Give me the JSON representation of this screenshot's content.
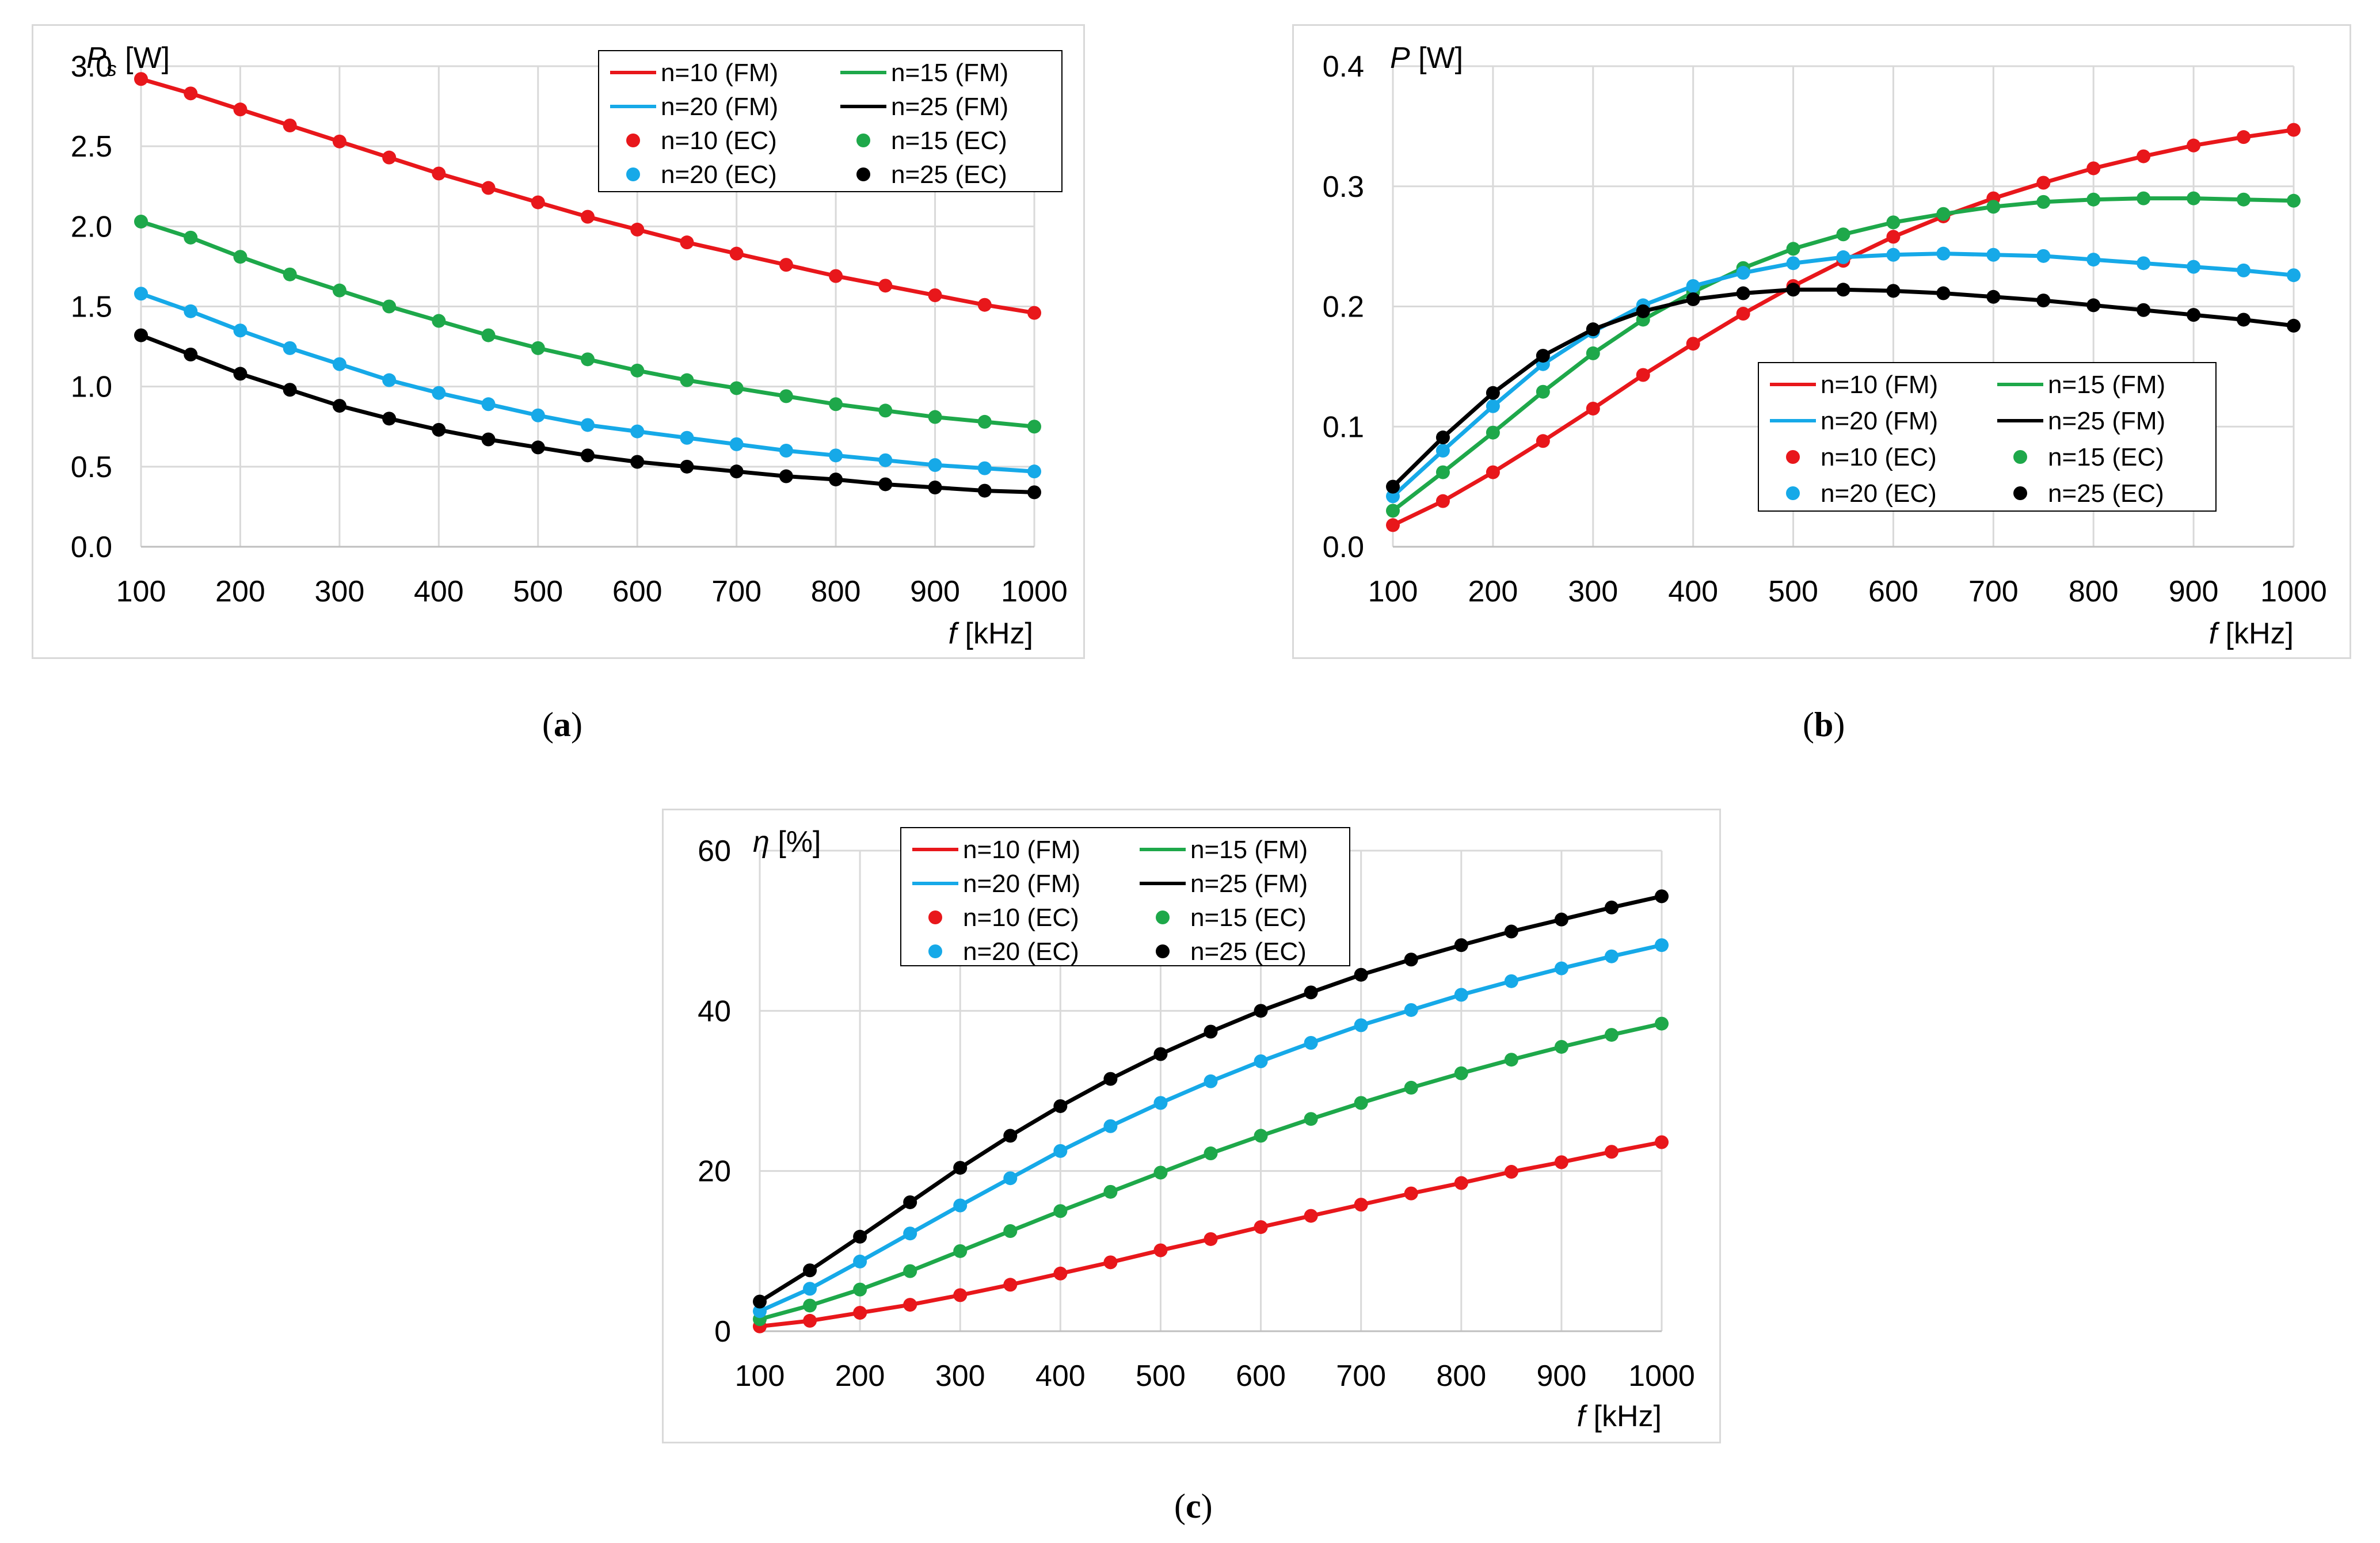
{
  "captions": {
    "a": "a",
    "b": "b",
    "c": "c"
  },
  "chart_data": [
    {
      "id": "a",
      "type": "line",
      "ylabel_symbol": "P",
      "ylabel_subscript": "s",
      "ylabel_unit": "[W]",
      "xlabel_symbol": "f",
      "xlabel_unit": "[kHz]",
      "xlim": [
        100,
        1000
      ],
      "ylim": [
        0,
        3.0
      ],
      "xticks": [
        "100",
        "200",
        "300",
        "400",
        "500",
        "600",
        "700",
        "800",
        "900",
        "1000"
      ],
      "yticks": [
        "0.0",
        "0.5",
        "1.0",
        "1.5",
        "2.0",
        "2.5",
        "3.0"
      ],
      "x": [
        100,
        150,
        200,
        250,
        300,
        350,
        400,
        450,
        500,
        550,
        600,
        650,
        700,
        750,
        800,
        850,
        900,
        950,
        1000
      ],
      "legend": [
        {
          "label": "n=10 (FM)",
          "kind": "line",
          "color": "#e8171b"
        },
        {
          "label": "n=15 (FM)",
          "kind": "line",
          "color": "#1ea84a"
        },
        {
          "label": "n=20 (FM)",
          "kind": "line",
          "color": "#16a9e8"
        },
        {
          "label": "n=25 (FM)",
          "kind": "line",
          "color": "#000000"
        },
        {
          "label": "n=10 (EC)",
          "kind": "dot",
          "color": "#e8171b"
        },
        {
          "label": "n=15 (EC)",
          "kind": "dot",
          "color": "#1ea84a"
        },
        {
          "label": "n=20 (EC)",
          "kind": "dot",
          "color": "#16a9e8"
        },
        {
          "label": "n=25 (EC)",
          "kind": "dot",
          "color": "#000000"
        }
      ],
      "series": [
        {
          "name": "n=10",
          "color": "#e8171b",
          "values": [
            2.92,
            2.83,
            2.73,
            2.63,
            2.53,
            2.43,
            2.33,
            2.24,
            2.15,
            2.06,
            1.98,
            1.9,
            1.83,
            1.76,
            1.69,
            1.63,
            1.57,
            1.51,
            1.46
          ]
        },
        {
          "name": "n=15",
          "color": "#1ea84a",
          "values": [
            2.03,
            1.93,
            1.81,
            1.7,
            1.6,
            1.5,
            1.41,
            1.32,
            1.24,
            1.17,
            1.1,
            1.04,
            0.99,
            0.94,
            0.89,
            0.85,
            0.81,
            0.78,
            0.75
          ]
        },
        {
          "name": "n=20",
          "color": "#16a9e8",
          "values": [
            1.58,
            1.47,
            1.35,
            1.24,
            1.14,
            1.04,
            0.96,
            0.89,
            0.82,
            0.76,
            0.72,
            0.68,
            0.64,
            0.6,
            0.57,
            0.54,
            0.51,
            0.49,
            0.47
          ]
        },
        {
          "name": "n=25",
          "color": "#000000",
          "values": [
            1.32,
            1.2,
            1.08,
            0.98,
            0.88,
            0.8,
            0.73,
            0.67,
            0.62,
            0.57,
            0.53,
            0.5,
            0.47,
            0.44,
            0.42,
            0.39,
            0.37,
            0.35,
            0.34
          ]
        }
      ]
    },
    {
      "id": "b",
      "type": "line",
      "ylabel_symbol": "P",
      "ylabel_subscript": "",
      "ylabel_unit": "[W]",
      "xlabel_symbol": "f",
      "xlabel_unit": "[kHz]",
      "xlim": [
        100,
        1000
      ],
      "ylim": [
        0,
        0.4
      ],
      "xticks": [
        "100",
        "200",
        "300",
        "400",
        "500",
        "600",
        "700",
        "800",
        "900",
        "1000"
      ],
      "yticks": [
        "0.0",
        "0.1",
        "0.2",
        "0.3",
        "0.4"
      ],
      "x": [
        100,
        150,
        200,
        250,
        300,
        350,
        400,
        450,
        500,
        550,
        600,
        650,
        700,
        750,
        800,
        850,
        900,
        950,
        1000
      ],
      "legend": [
        {
          "label": "n=10 (FM)",
          "kind": "line",
          "color": "#e8171b"
        },
        {
          "label": "n=15 (FM)",
          "kind": "line",
          "color": "#1ea84a"
        },
        {
          "label": "n=20 (FM)",
          "kind": "line",
          "color": "#16a9e8"
        },
        {
          "label": "n=25 (FM)",
          "kind": "line",
          "color": "#000000"
        },
        {
          "label": "n=10 (EC)",
          "kind": "dot",
          "color": "#e8171b"
        },
        {
          "label": "n=15 (EC)",
          "kind": "dot",
          "color": "#1ea84a"
        },
        {
          "label": "n=20 (EC)",
          "kind": "dot",
          "color": "#16a9e8"
        },
        {
          "label": "n=25 (EC)",
          "kind": "dot",
          "color": "#000000"
        }
      ],
      "series": [
        {
          "name": "n=10",
          "color": "#e8171b",
          "values": [
            0.018,
            0.038,
            0.062,
            0.088,
            0.115,
            0.143,
            0.169,
            0.194,
            0.217,
            0.238,
            0.258,
            0.275,
            0.29,
            0.303,
            0.315,
            0.325,
            0.334,
            0.341,
            0.347
          ]
        },
        {
          "name": "n=15",
          "color": "#1ea84a",
          "values": [
            0.03,
            0.062,
            0.095,
            0.129,
            0.161,
            0.189,
            0.212,
            0.232,
            0.248,
            0.26,
            0.27,
            0.277,
            0.283,
            0.287,
            0.289,
            0.29,
            0.29,
            0.289,
            0.288
          ]
        },
        {
          "name": "n=20",
          "color": "#16a9e8",
          "values": [
            0.042,
            0.08,
            0.117,
            0.152,
            0.179,
            0.201,
            0.217,
            0.228,
            0.236,
            0.241,
            0.243,
            0.244,
            0.243,
            0.242,
            0.239,
            0.236,
            0.233,
            0.23,
            0.226
          ]
        },
        {
          "name": "n=25",
          "color": "#000000",
          "values": [
            0.05,
            0.091,
            0.128,
            0.159,
            0.181,
            0.196,
            0.206,
            0.211,
            0.214,
            0.214,
            0.213,
            0.211,
            0.208,
            0.205,
            0.201,
            0.197,
            0.193,
            0.189,
            0.184
          ]
        }
      ]
    },
    {
      "id": "c",
      "type": "line",
      "ylabel_symbol": "η",
      "ylabel_subscript": "",
      "ylabel_unit": "[%]",
      "xlabel_symbol": "f",
      "xlabel_unit": "[kHz]",
      "xlim": [
        100,
        1000
      ],
      "ylim": [
        0,
        60
      ],
      "xticks": [
        "100",
        "200",
        "300",
        "400",
        "500",
        "600",
        "700",
        "800",
        "900",
        "1000"
      ],
      "yticks": [
        "0",
        "20",
        "40",
        "60"
      ],
      "x": [
        100,
        150,
        200,
        250,
        300,
        350,
        400,
        450,
        500,
        550,
        600,
        650,
        700,
        750,
        800,
        850,
        900,
        950,
        1000
      ],
      "legend": [
        {
          "label": "n=10 (FM)",
          "kind": "line",
          "color": "#e8171b"
        },
        {
          "label": "n=15 (FM)",
          "kind": "line",
          "color": "#1ea84a"
        },
        {
          "label": "n=20 (FM)",
          "kind": "line",
          "color": "#16a9e8"
        },
        {
          "label": "n=25 (FM)",
          "kind": "line",
          "color": "#000000"
        },
        {
          "label": "n=10 (EC)",
          "kind": "dot",
          "color": "#e8171b"
        },
        {
          "label": "n=15 (EC)",
          "kind": "dot",
          "color": "#1ea84a"
        },
        {
          "label": "n=20 (EC)",
          "kind": "dot",
          "color": "#16a9e8"
        },
        {
          "label": "n=25 (EC)",
          "kind": "dot",
          "color": "#000000"
        }
      ],
      "series": [
        {
          "name": "n=10",
          "color": "#e8171b",
          "values": [
            0.6,
            1.3,
            2.3,
            3.3,
            4.5,
            5.8,
            7.2,
            8.6,
            10.1,
            11.5,
            13.0,
            14.4,
            15.8,
            17.2,
            18.5,
            19.9,
            21.1,
            22.4,
            23.6
          ]
        },
        {
          "name": "n=15",
          "color": "#1ea84a",
          "values": [
            1.5,
            3.2,
            5.2,
            7.5,
            10.0,
            12.5,
            15.0,
            17.4,
            19.8,
            22.2,
            24.4,
            26.5,
            28.5,
            30.4,
            32.2,
            33.9,
            35.5,
            37.0,
            38.4
          ]
        },
        {
          "name": "n=20",
          "color": "#16a9e8",
          "values": [
            2.5,
            5.3,
            8.7,
            12.2,
            15.7,
            19.1,
            22.5,
            25.6,
            28.5,
            31.2,
            33.7,
            36.0,
            38.2,
            40.1,
            42.0,
            43.7,
            45.3,
            46.8,
            48.2
          ]
        },
        {
          "name": "n=25",
          "color": "#000000",
          "values": [
            3.7,
            7.6,
            11.8,
            16.1,
            20.4,
            24.4,
            28.1,
            31.5,
            34.6,
            37.4,
            40.0,
            42.3,
            44.5,
            46.4,
            48.2,
            49.9,
            51.4,
            52.9,
            54.3
          ]
        }
      ]
    }
  ]
}
